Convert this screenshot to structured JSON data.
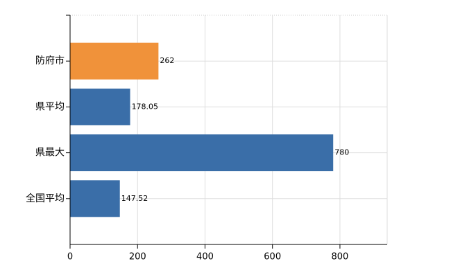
{
  "chart_data": {
    "type": "bar",
    "orientation": "horizontal",
    "categories": [
      "防府市",
      "県平均",
      "県最大",
      "全国平均"
    ],
    "values": [
      262,
      178.05,
      780,
      147.52
    ],
    "colors": [
      "#f0923a",
      "#3a6ea8",
      "#3a6ea8",
      "#3a6ea8"
    ],
    "xlim": [
      0,
      940
    ],
    "xticks": [
      0,
      200,
      400,
      600,
      800
    ],
    "grid": true
  }
}
